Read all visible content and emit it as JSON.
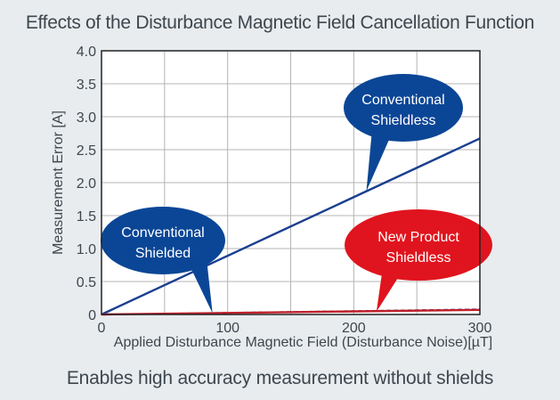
{
  "chart_data": {
    "type": "line",
    "title": "Effects of the Disturbance Magnetic Field Cancellation Function",
    "subtitle": "Enables high accuracy measurement without shields",
    "xlabel": "Applied Disturbance Magnetic Field (Disturbance Noise)[µT]",
    "ylabel": "Measurement Error [A]",
    "xlim": [
      0,
      300
    ],
    "ylim": [
      0,
      4.0
    ],
    "x_ticks": [
      0,
      100,
      200,
      300
    ],
    "x_tick_labels": [
      "0",
      "100",
      "200",
      "300"
    ],
    "y_ticks": [
      0,
      0.5,
      1.0,
      1.5,
      2.0,
      2.5,
      3.0,
      3.5,
      4.0
    ],
    "y_tick_labels": [
      "0",
      "0.5",
      "1.0",
      "1.5",
      "2.0",
      "2.5",
      "3.0",
      "3.5",
      "4.0"
    ],
    "x_grid": [
      50,
      100,
      150,
      200,
      250
    ],
    "grid": true,
    "series": [
      {
        "name": "Conventional Shieldless",
        "color": "#1a3f8f",
        "style": "solid",
        "x": [
          0,
          300
        ],
        "y": [
          0,
          2.67
        ]
      },
      {
        "name": "Conventional Shielded",
        "color": "#2b3f8a",
        "style": "dashed",
        "x": [
          0,
          300
        ],
        "y": [
          0,
          0.08
        ]
      },
      {
        "name": "New Product Shieldless",
        "color": "#c0202a",
        "style": "solid",
        "x": [
          0,
          300
        ],
        "y": [
          0,
          0.07
        ]
      }
    ],
    "annotations": [
      {
        "lines": [
          "Conventional",
          "Shieldless"
        ],
        "color": "#0b4696",
        "target": "Conventional Shieldless",
        "point": [
          210,
          1.87
        ]
      },
      {
        "lines": [
          "Conventional",
          "Shielded"
        ],
        "color": "#0b4696",
        "target": "Conventional Shielded",
        "point": [
          88,
          0.02
        ]
      },
      {
        "lines": [
          "New Product",
          "Shieldless"
        ],
        "color": "#e0141e",
        "target": "New Product Shieldless",
        "point": [
          218,
          0.04
        ]
      }
    ]
  }
}
